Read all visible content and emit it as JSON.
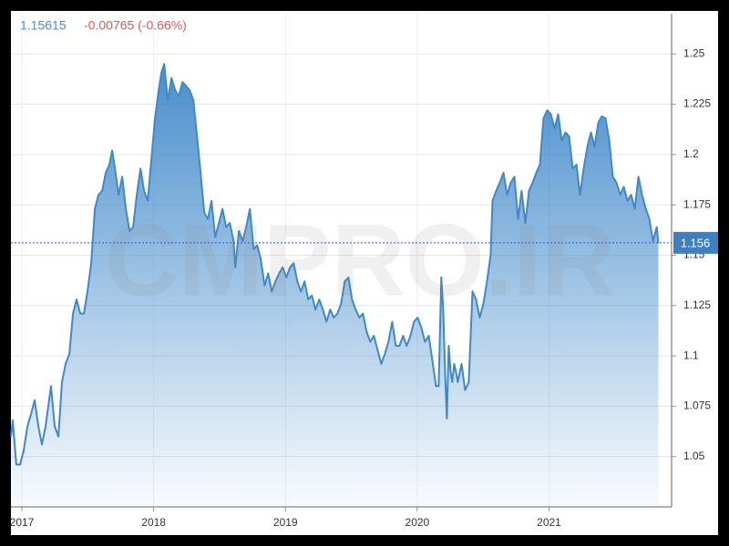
{
  "chart_data": {
    "type": "area",
    "watermark": "CMPRO.IR",
    "change_label": "-0.00765 (-0.66%)",
    "price_line": {
      "value": 1.15615,
      "label": "1.156"
    },
    "color": "#3f88c9",
    "grid": true,
    "xlim": [
      2016.917,
      2021.93
    ],
    "ylim": [
      1.025,
      1.27
    ],
    "xticks": [
      2017,
      2018,
      2019,
      2020,
      2021
    ],
    "yticks": [
      1.25,
      1.225,
      1.2,
      1.175,
      1.15,
      1.125,
      1.1,
      1.075,
      1.05
    ],
    "x": [
      2016.917,
      2016.931,
      2016.958,
      2016.986,
      2017.014,
      2017.042,
      2017.069,
      2017.097,
      2017.125,
      2017.152,
      2017.18,
      2017.221,
      2017.249,
      2017.277,
      2017.304,
      2017.332,
      2017.36,
      2017.388,
      2017.415,
      2017.443,
      2017.471,
      2017.498,
      2017.526,
      2017.554,
      2017.581,
      2017.609,
      2017.637,
      2017.664,
      2017.685,
      2017.706,
      2017.734,
      2017.761,
      2017.789,
      2017.817,
      2017.844,
      2017.872,
      2017.9,
      2017.927,
      2017.955,
      2017.983,
      2018.01,
      2018.038,
      2018.059,
      2018.08,
      2018.107,
      2018.135,
      2018.163,
      2018.19,
      2018.218,
      2018.246,
      2018.273,
      2018.301,
      2018.329,
      2018.356,
      2018.384,
      2018.412,
      2018.439,
      2018.467,
      2018.495,
      2018.522,
      2018.55,
      2018.578,
      2018.606,
      2018.619,
      2018.647,
      2018.675,
      2018.702,
      2018.73,
      2018.758,
      2018.785,
      2018.813,
      2018.841,
      2018.869,
      2018.896,
      2018.924,
      2018.952,
      2018.979,
      2019.007,
      2019.035,
      2019.062,
      2019.09,
      2019.118,
      2019.145,
      2019.173,
      2019.201,
      2019.228,
      2019.256,
      2019.284,
      2019.311,
      2019.339,
      2019.367,
      2019.394,
      2019.422,
      2019.45,
      2019.478,
      2019.505,
      2019.533,
      2019.561,
      2019.588,
      2019.616,
      2019.644,
      2019.671,
      2019.699,
      2019.727,
      2019.754,
      2019.782,
      2019.81,
      2019.837,
      2019.865,
      2019.893,
      2019.92,
      2019.948,
      2019.976,
      2020.003,
      2020.031,
      2020.059,
      2020.087,
      2020.114,
      2020.142,
      2020.163,
      2020.183,
      2020.197,
      2020.211,
      2020.225,
      2020.239,
      2020.253,
      2020.266,
      2020.28,
      2020.294,
      2020.308,
      2020.336,
      2020.363,
      2020.391,
      2020.419,
      2020.446,
      2020.474,
      2020.502,
      2020.529,
      2020.557,
      2020.571,
      2020.599,
      2020.626,
      2020.654,
      2020.682,
      2020.709,
      2020.737,
      2020.765,
      2020.792,
      2020.82,
      2020.848,
      2020.875,
      2020.903,
      2020.931,
      2020.958,
      2020.986,
      2021.014,
      2021.042,
      2021.069,
      2021.097,
      2021.125,
      2021.152,
      2021.18,
      2021.208,
      2021.235,
      2021.263,
      2021.291,
      2021.318,
      2021.346,
      2021.374,
      2021.401,
      2021.429,
      2021.457,
      2021.484,
      2021.512,
      2021.54,
      2021.567,
      2021.595,
      2021.623,
      2021.651,
      2021.678,
      2021.706,
      2021.734,
      2021.761,
      2021.789,
      2021.817,
      2021.83
    ],
    "values": [
      1.06,
      1.068,
      1.046,
      1.046,
      1.053,
      1.065,
      1.071,
      1.078,
      1.065,
      1.056,
      1.065,
      1.085,
      1.065,
      1.06,
      1.087,
      1.096,
      1.101,
      1.121,
      1.128,
      1.121,
      1.121,
      1.132,
      1.146,
      1.173,
      1.18,
      1.182,
      1.191,
      1.195,
      1.202,
      1.193,
      1.18,
      1.189,
      1.173,
      1.162,
      1.164,
      1.18,
      1.193,
      1.182,
      1.177,
      1.198,
      1.218,
      1.232,
      1.241,
      1.245,
      1.227,
      1.238,
      1.232,
      1.229,
      1.236,
      1.234,
      1.232,
      1.227,
      1.209,
      1.191,
      1.171,
      1.168,
      1.177,
      1.159,
      1.166,
      1.173,
      1.164,
      1.166,
      1.157,
      1.144,
      1.162,
      1.157,
      1.164,
      1.173,
      1.153,
      1.155,
      1.148,
      1.135,
      1.141,
      1.132,
      1.137,
      1.141,
      1.144,
      1.139,
      1.144,
      1.146,
      1.137,
      1.132,
      1.137,
      1.128,
      1.13,
      1.123,
      1.128,
      1.123,
      1.117,
      1.123,
      1.119,
      1.121,
      1.126,
      1.137,
      1.139,
      1.128,
      1.123,
      1.119,
      1.121,
      1.112,
      1.107,
      1.11,
      1.103,
      1.096,
      1.101,
      1.107,
      1.117,
      1.105,
      1.105,
      1.11,
      1.105,
      1.11,
      1.117,
      1.119,
      1.114,
      1.107,
      1.11,
      1.098,
      1.085,
      1.085,
      1.139,
      1.123,
      1.092,
      1.069,
      1.105,
      1.092,
      1.087,
      1.096,
      1.092,
      1.087,
      1.096,
      1.083,
      1.087,
      1.132,
      1.128,
      1.119,
      1.126,
      1.137,
      1.15,
      1.177,
      1.182,
      1.186,
      1.191,
      1.18,
      1.186,
      1.189,
      1.168,
      1.182,
      1.166,
      1.182,
      1.186,
      1.191,
      1.195,
      1.218,
      1.222,
      1.22,
      1.213,
      1.22,
      1.207,
      1.211,
      1.209,
      1.193,
      1.195,
      1.18,
      1.193,
      1.204,
      1.211,
      1.204,
      1.216,
      1.219,
      1.218,
      1.207,
      1.189,
      1.186,
      1.18,
      1.184,
      1.177,
      1.18,
      1.173,
      1.189,
      1.18,
      1.173,
      1.168,
      1.157,
      1.164,
      1.156
    ]
  }
}
